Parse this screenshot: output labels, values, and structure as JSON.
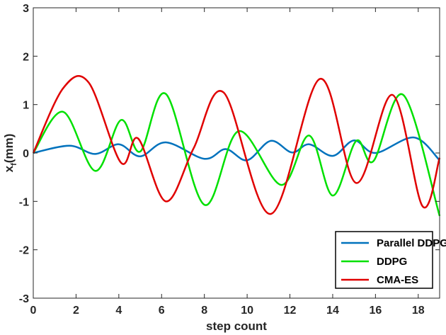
{
  "chart_data": {
    "type": "line",
    "title": "",
    "xlabel": "step count",
    "ylabel": "x",
    "ylabel_sub": "f",
    "ylabel_unit": "(mm)",
    "xlim": [
      0,
      19
    ],
    "ylim": [
      -3,
      3
    ],
    "xticks": [
      "0",
      "2",
      "4",
      "6",
      "8",
      "10",
      "12",
      "14",
      "16",
      "18"
    ],
    "yticks": [
      "-3",
      "-2",
      "-1",
      "0",
      "1",
      "2",
      "3"
    ],
    "grid": false,
    "legend_position": "bottom-right",
    "series": [
      {
        "name": "Parallel DDPG",
        "color": "#0072BD",
        "x": [
          0,
          1.7,
          2.9,
          4,
          5,
          6.2,
          8,
          9,
          10,
          11.1,
          12.1,
          12.9,
          14,
          15,
          16,
          17.8,
          19
        ],
        "y": [
          0,
          0.15,
          -0.02,
          0.18,
          -0.07,
          0.22,
          -0.12,
          0.08,
          -0.15,
          0.25,
          0.01,
          0.18,
          -0.06,
          0.26,
          0,
          0.32,
          -0.15
        ]
      },
      {
        "name": "DDPG",
        "color": "#00E000",
        "x": [
          0,
          1.4,
          2.9,
          4.1,
          5,
          6.2,
          8,
          9.6,
          11.6,
          12.9,
          14,
          15.1,
          15.9,
          17.3,
          19
        ],
        "y": [
          0,
          0.85,
          -0.37,
          0.68,
          0.03,
          1.22,
          -1.07,
          0.45,
          -0.66,
          0.36,
          -0.88,
          0.25,
          -0.17,
          1.2,
          -1.3
        ]
      },
      {
        "name": "CMA-ES",
        "color": "#E00000",
        "x": [
          0,
          1.4,
          2.6,
          4.1,
          4.9,
          6.2,
          7.5,
          8.9,
          11.1,
          13.4,
          15.1,
          16.8,
          18.2,
          19
        ],
        "y": [
          0,
          1.34,
          1.45,
          -0.2,
          0.3,
          -1.0,
          0.1,
          1.25,
          -1.26,
          1.53,
          -0.62,
          1.2,
          -1.1,
          -0.1
        ]
      }
    ]
  }
}
